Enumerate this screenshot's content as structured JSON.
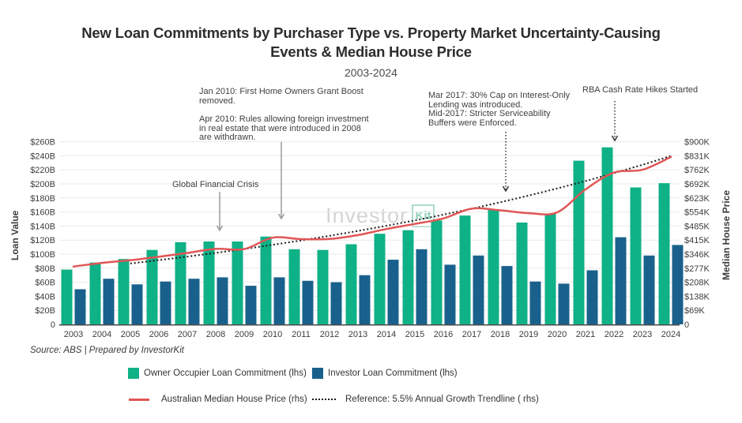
{
  "title": {
    "line1": "New Loan Commitments by Purchaser Type vs. Property Market Uncertainty-Causing",
    "line2": "Events & Median House Price"
  },
  "subtitle": "2003-2024",
  "source": "Source: ABS | Prepared by InvestorKit",
  "watermark": {
    "brand": "Investor",
    "logo": "Kit"
  },
  "axes": {
    "left_title": "Loan Value",
    "right_title": "Median House Price",
    "left_ticks": [
      "0",
      "$20B",
      "$40B",
      "$60B",
      "$80B",
      "$100B",
      "$120B",
      "$140B",
      "$160B",
      "$180B",
      "$200B",
      "$220B",
      "$240B",
      "$260B"
    ],
    "right_ticks": [
      "0",
      "$69K",
      "$138K",
      "$208K",
      "$277K",
      "$346K",
      "$415K",
      "$485K",
      "$554K",
      "$623K",
      "$692K",
      "$762K",
      "$831K",
      "$900K"
    ]
  },
  "legend": {
    "owner": {
      "label": "Owner Occupier Loan Commitment (lhs)",
      "color": "#0fb186"
    },
    "investor": {
      "label": "Investor Loan Commitment (lhs)",
      "color": "#19618c"
    },
    "median": {
      "label": "Australian Median House Price (rhs)",
      "color": "#e05656"
    },
    "trendline": {
      "label": "Reference: 5.5% Annual Growth Trendline ( rhs)",
      "color": "#1a1a1a"
    }
  },
  "annotations": {
    "jan2010": {
      "text": "Jan 2010: First Home Owners Grant Boost\nremoved."
    },
    "apr2010": {
      "text": "Apr 2010: Rules allowing foreign investment\nin real estate that were introduced in 2008\nare withdrawn."
    },
    "gfc": {
      "text": "Global Financial Crisis"
    },
    "mar2017": {
      "text": "Mar 2017: 30% Cap on Interest-Only\nLending was introduced.\nMid-2017: Stricter Serviceability\nBuffers were Enforced."
    },
    "rba": {
      "text": "RBA Cash Rate Hikes Started"
    }
  },
  "chart_data": {
    "type": "bar+line",
    "categories": [
      2003,
      2004,
      2005,
      2006,
      2007,
      2008,
      2009,
      2010,
      2011,
      2012,
      2013,
      2014,
      2015,
      2016,
      2017,
      2018,
      2019,
      2020,
      2021,
      2022,
      2023,
      2024
    ],
    "series": [
      {
        "name": "Owner Occupier Loan Commitment",
        "unit": "$B",
        "axis": "left",
        "color": "#0fb186",
        "values": [
          78,
          88,
          93,
          106,
          117,
          118,
          118,
          125,
          107,
          106,
          114,
          129,
          134,
          148,
          155,
          164,
          145,
          157,
          233,
          252,
          195,
          201
        ]
      },
      {
        "name": "Investor Loan Commitment",
        "unit": "$B",
        "axis": "left",
        "color": "#19618c",
        "values": [
          50,
          65,
          57,
          61,
          65,
          67,
          55,
          67,
          62,
          60,
          70,
          92,
          107,
          85,
          98,
          83,
          61,
          58,
          77,
          124,
          98,
          113
        ]
      }
    ],
    "lines": [
      {
        "name": "Australian Median House Price",
        "unit": "$K",
        "axis": "right",
        "style": "solid",
        "color": "#e05656",
        "x": [
          2003,
          2004,
          2005,
          2006,
          2007,
          2008,
          2009,
          2010,
          2011,
          2012,
          2013,
          2014,
          2015,
          2016,
          2017,
          2018,
          2019,
          2020,
          2021,
          2022,
          2023,
          2024
        ],
        "values": [
          285,
          303,
          316,
          333,
          352,
          372,
          371,
          427,
          420,
          421,
          440,
          470,
          495,
          522,
          570,
          562,
          548,
          552,
          665,
          748,
          762,
          825
        ]
      },
      {
        "name": "Reference: 5.5% Annual Growth Trendline",
        "unit": "$K",
        "axis": "right",
        "style": "dotted",
        "color": "#1a1a1a",
        "x": [
          2005,
          2006,
          2007,
          2008,
          2009,
          2010,
          2011,
          2012,
          2013,
          2014,
          2015,
          2016,
          2017,
          2018,
          2019,
          2020,
          2021,
          2022,
          2023,
          2024
        ],
        "values": [
          300,
          316.5,
          333.9,
          352.3,
          371.6,
          392.1,
          413.6,
          436.4,
          460.4,
          485.7,
          512.4,
          540.6,
          570.3,
          601.7,
          634.8,
          669.7,
          706.5,
          745.4,
          786.4,
          829.6
        ]
      }
    ],
    "ylim_left": [
      0,
      260
    ],
    "ylim_right": [
      0,
      900
    ],
    "ylabel_left": "Loan Value",
    "ylabel_right": "Median House Price",
    "grid": true,
    "legend_position": "bottom"
  }
}
